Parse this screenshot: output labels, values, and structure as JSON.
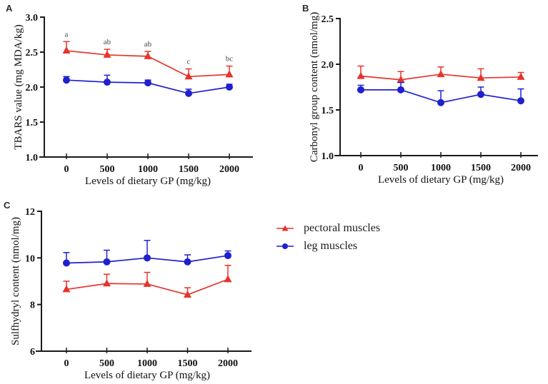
{
  "figure": {
    "panels": [
      {
        "label": "A"
      },
      {
        "label": "B"
      },
      {
        "label": "C"
      }
    ],
    "legend": {
      "items": [
        {
          "label": "pectoral muscles",
          "color": "#e6342c",
          "marker": "triangle"
        },
        {
          "label": "leg muscles",
          "color": "#2020cc",
          "marker": "circle"
        }
      ]
    },
    "colors": {
      "pectoral": "#e6342c",
      "leg": "#2020cc",
      "axis": "#1a1a1a",
      "sig_letters": "#444444"
    }
  },
  "chart_data": [
    {
      "panel": "A",
      "type": "line",
      "title": "",
      "xlabel": "Levels of dietary GP (mg/kg)",
      "ylabel": "TBARS value (mg MDA/kg)",
      "categories": [
        "0",
        "500",
        "1000",
        "1500",
        "2000"
      ],
      "x_values": [
        0,
        500,
        1000,
        1500,
        2000
      ],
      "ylim": [
        1.0,
        3.0
      ],
      "yticks": [
        1.0,
        1.5,
        2.0,
        2.5,
        3.0
      ],
      "ytick_labels": [
        "1.0",
        "1.5",
        "2.0",
        "2.5",
        "3.0"
      ],
      "grid": false,
      "series": [
        {
          "name": "pectoral muscles",
          "color": "#e6342c",
          "marker": "triangle",
          "values": [
            2.52,
            2.46,
            2.44,
            2.15,
            2.18
          ],
          "errors_up": [
            0.13,
            0.08,
            0.07,
            0.11,
            0.12
          ],
          "sig_letters": [
            "a",
            "ab",
            "ab",
            "c",
            "bc"
          ]
        },
        {
          "name": "leg muscles",
          "color": "#2020cc",
          "marker": "circle",
          "values": [
            2.1,
            2.07,
            2.06,
            1.91,
            2.0
          ],
          "errors_up": [
            0.05,
            0.1,
            0.04,
            0.06,
            0.04
          ],
          "sig_letters": null
        }
      ]
    },
    {
      "panel": "B",
      "type": "line",
      "title": "",
      "xlabel": "Levels of dietary GP (mg/kg)",
      "ylabel": "Carbonyl group content (nmol/mg)",
      "categories": [
        "0",
        "500",
        "1000",
        "1500",
        "2000"
      ],
      "x_values": [
        0,
        500,
        1000,
        1500,
        2000
      ],
      "ylim": [
        1.0,
        2.5
      ],
      "yticks": [
        1.0,
        1.5,
        2.0,
        2.5
      ],
      "ytick_labels": [
        "1.0",
        "1.5",
        "2.0",
        "2.5"
      ],
      "grid": false,
      "series": [
        {
          "name": "pectoral muscles",
          "color": "#e6342c",
          "marker": "triangle",
          "values": [
            1.87,
            1.83,
            1.89,
            1.85,
            1.86
          ],
          "errors_up": [
            0.11,
            0.09,
            0.08,
            0.1,
            0.05
          ],
          "sig_letters": null
        },
        {
          "name": "leg muscles",
          "color": "#2020cc",
          "marker": "circle",
          "values": [
            1.72,
            1.72,
            1.58,
            1.67,
            1.6
          ],
          "errors_up": [
            0.05,
            0.08,
            0.13,
            0.08,
            0.13
          ],
          "sig_letters": null
        }
      ]
    },
    {
      "panel": "C",
      "type": "line",
      "title": "",
      "xlabel": "Levels of dietary GP (mg/kg)",
      "ylabel": "Sulfhydryl content (nmol/mg)",
      "categories": [
        "0",
        "500",
        "1000",
        "1500",
        "2000"
      ],
      "x_values": [
        0,
        500,
        1000,
        1500,
        2000
      ],
      "ylim": [
        6,
        12
      ],
      "yticks": [
        6,
        8,
        10,
        12
      ],
      "ytick_labels": [
        "6",
        "8",
        "10",
        "12"
      ],
      "grid": false,
      "series": [
        {
          "name": "pectoral muscles",
          "color": "#e6342c",
          "marker": "triangle",
          "values": [
            8.65,
            8.9,
            8.88,
            8.42,
            9.08
          ],
          "errors_up": [
            0.35,
            0.4,
            0.5,
            0.3,
            0.6
          ],
          "sig_letters": null
        },
        {
          "name": "leg muscles",
          "color": "#2020cc",
          "marker": "circle",
          "values": [
            9.78,
            9.83,
            10.0,
            9.83,
            10.1
          ],
          "errors_up": [
            0.45,
            0.5,
            0.75,
            0.3,
            0.2
          ],
          "sig_letters": null
        }
      ]
    }
  ]
}
